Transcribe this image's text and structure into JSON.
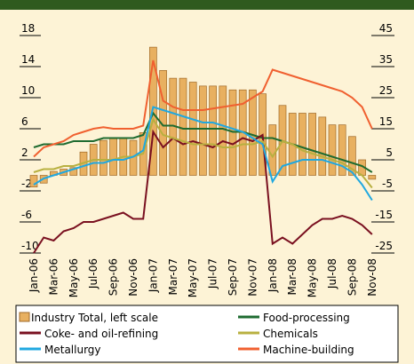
{
  "chart_data": {
    "type": "bar",
    "categories": [
      "Jan-06",
      null,
      "Mar-06",
      null,
      "May-06",
      null,
      "Jul-06",
      null,
      "Sep-06",
      null,
      "Nov-06",
      null,
      "Jan-07",
      null,
      "Mar-07",
      null,
      "May-07",
      null,
      "Jul-07",
      null,
      "Sep-07",
      null,
      "Nov-07",
      null,
      "Jan-08",
      null,
      "Mar-08",
      null,
      "May-08",
      null,
      "Jul-08",
      null,
      "Sep-08",
      null,
      "Nov-08"
    ],
    "ylim": [
      -10,
      18
    ],
    "yticks": [
      -10,
      -6,
      -2,
      2,
      6,
      10,
      14,
      18
    ],
    "y2lim": [
      -25,
      45
    ],
    "y2ticks": [
      -25,
      -15,
      -5,
      5,
      15,
      25,
      35,
      45
    ],
    "series": [
      {
        "name": "Industry Total, left scale",
        "type": "bar",
        "color": "#e8b060",
        "values": [
          -1.5,
          -1,
          0.5,
          0.8,
          1,
          3,
          4,
          4.5,
          4.8,
          4.8,
          4.5,
          5.5,
          16.5,
          13.5,
          12.5,
          12.5,
          12,
          11.5,
          11.5,
          11.5,
          11,
          11,
          11,
          10.5,
          6.5,
          9,
          8,
          8,
          8,
          7.5,
          6.5,
          6.5,
          5,
          2,
          -0.5
        ]
      },
      {
        "name": "Food-processing",
        "type": "line",
        "axis": "y2",
        "color": "#1e6b30",
        "values": [
          9,
          10,
          10,
          10,
          11,
          11,
          11,
          12,
          12,
          12,
          12,
          13,
          20,
          16,
          16,
          15,
          15,
          15,
          15,
          15,
          14,
          14,
          13,
          12,
          12,
          11,
          10,
          9,
          8,
          7,
          6,
          5,
          4,
          3,
          1
        ]
      },
      {
        "name": "Coke- and oil-refining",
        "type": "line",
        "axis": "y2",
        "color": "#7a1020",
        "values": [
          -25,
          -20,
          -21,
          -18,
          -17,
          -15,
          -15,
          -14,
          -13,
          -12,
          -14,
          -14,
          14,
          9,
          12,
          10,
          11,
          10,
          9,
          11,
          10,
          12,
          11,
          13,
          -22,
          -20,
          -22,
          -19,
          -16,
          -14,
          -14,
          -13,
          -14,
          -16,
          -19
        ]
      },
      {
        "name": "Chemicals",
        "type": "line",
        "axis": "y2",
        "color": "#b8b040",
        "values": [
          1,
          2,
          2,
          3,
          3,
          4,
          5,
          5,
          5,
          6,
          6,
          7,
          18,
          13,
          12,
          11,
          10,
          10,
          10,
          9,
          9,
          10,
          10,
          11,
          6,
          11,
          10,
          8,
          7,
          6,
          5,
          4,
          2,
          0,
          -4
        ]
      },
      {
        "name": "Metallurgy",
        "type": "line",
        "axis": "y2",
        "color": "#20a8e0",
        "values": [
          -3,
          -1,
          0,
          1,
          2,
          3,
          4,
          4,
          5,
          5,
          6,
          8,
          22,
          21,
          20,
          19,
          18,
          17,
          17,
          16,
          15,
          14,
          12,
          10,
          -2,
          3,
          4,
          5,
          5,
          5,
          4,
          3,
          1,
          -3,
          -8
        ]
      },
      {
        "name": "Machine-building",
        "type": "line",
        "axis": "y2",
        "color": "#f06030",
        "values": [
          6,
          9,
          10,
          11,
          13,
          14,
          15,
          15.5,
          15,
          15,
          15,
          16,
          37,
          24,
          22,
          21,
          21,
          21,
          21.5,
          22,
          22.5,
          23,
          25,
          27,
          34,
          33,
          32,
          31,
          30,
          29,
          28,
          27,
          25,
          22,
          15
        ]
      }
    ]
  }
}
